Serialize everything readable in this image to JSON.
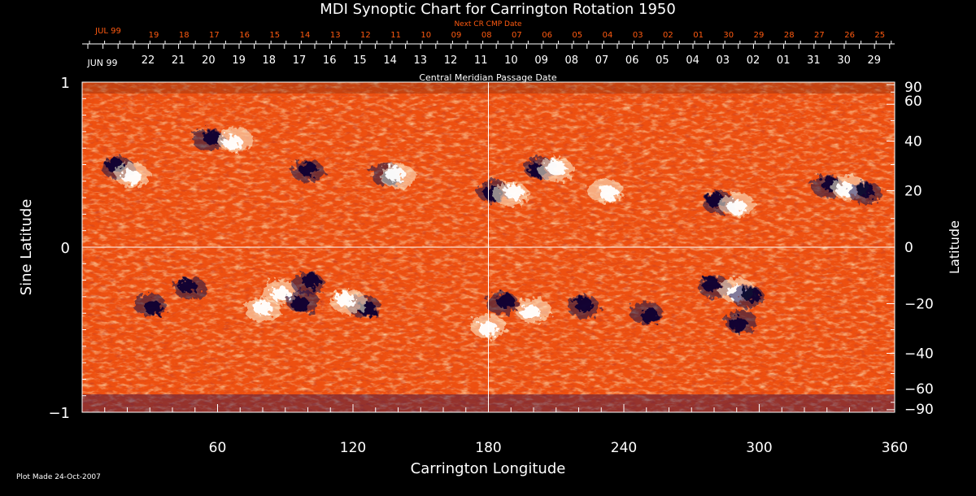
{
  "colors": {
    "background": "#000000",
    "text": "#ffffff",
    "accent_orange": "#ff5a10",
    "positive_polarity": "#fff6d8",
    "negative_polarity": "#1a0f4a",
    "background_field": "#f05a12"
  },
  "footer": {
    "plot_made": "Plot Made 24-Oct-2007"
  },
  "chart_data": {
    "type": "heatmap",
    "title": "MDI Synoptic Chart for Carrington Rotation 1950",
    "xlabel": "Carrington Longitude",
    "ylabel_left": "Sine Latitude",
    "ylabel_right": "Latitude",
    "xlim": [
      0,
      360
    ],
    "ylim": [
      -1,
      1
    ],
    "x_ticks": [
      60,
      120,
      180,
      240,
      300,
      360
    ],
    "y_ticks_left": [
      {
        "value": 1,
        "label": "1"
      },
      {
        "value": 0,
        "label": "0"
      },
      {
        "value": -1,
        "label": "−1"
      }
    ],
    "y_ticks_right": [
      90,
      60,
      40,
      20,
      0,
      -20,
      -40,
      -60,
      -90
    ],
    "grid": {
      "vertical_at_longitude": 180,
      "horizontal_at_sine_latitude": 0
    },
    "top_axis_next_cr": {
      "title": "Next CR CMP Date",
      "month_label": "JUL 99",
      "days": [
        "19",
        "18",
        "17",
        "16",
        "15",
        "14",
        "13",
        "12",
        "11",
        "10",
        "09",
        "08",
        "07",
        "06",
        "05",
        "04",
        "03",
        "02",
        "01",
        "30",
        "29",
        "28",
        "27",
        "26",
        "25"
      ]
    },
    "top_axis_cmp": {
      "title": "Central Meridian Passage Date",
      "month_label": "JUN 99",
      "days": [
        "22",
        "21",
        "20",
        "19",
        "18",
        "17",
        "16",
        "15",
        "14",
        "13",
        "12",
        "11",
        "10",
        "09",
        "08",
        "07",
        "06",
        "05",
        "04",
        "03",
        "02",
        "01",
        "31",
        "30",
        "29"
      ]
    },
    "active_regions": [
      {
        "lon": 16,
        "sinlat": 0.48,
        "polarity": "negative"
      },
      {
        "lon": 22,
        "sinlat": 0.44,
        "polarity": "positive"
      },
      {
        "lon": 56,
        "sinlat": 0.65,
        "polarity": "negative"
      },
      {
        "lon": 68,
        "sinlat": 0.65,
        "polarity": "positive"
      },
      {
        "lon": 100,
        "sinlat": 0.46,
        "polarity": "negative"
      },
      {
        "lon": 135,
        "sinlat": 0.44,
        "polarity": "negative"
      },
      {
        "lon": 140,
        "sinlat": 0.43,
        "polarity": "positive"
      },
      {
        "lon": 182,
        "sinlat": 0.34,
        "polarity": "negative"
      },
      {
        "lon": 190,
        "sinlat": 0.32,
        "polarity": "positive"
      },
      {
        "lon": 203,
        "sinlat": 0.48,
        "polarity": "negative"
      },
      {
        "lon": 210,
        "sinlat": 0.47,
        "polarity": "positive"
      },
      {
        "lon": 232,
        "sinlat": 0.34,
        "polarity": "positive"
      },
      {
        "lon": 282,
        "sinlat": 0.27,
        "polarity": "negative"
      },
      {
        "lon": 290,
        "sinlat": 0.26,
        "polarity": "positive"
      },
      {
        "lon": 330,
        "sinlat": 0.37,
        "polarity": "negative"
      },
      {
        "lon": 340,
        "sinlat": 0.36,
        "polarity": "positive"
      },
      {
        "lon": 347,
        "sinlat": 0.33,
        "polarity": "negative"
      },
      {
        "lon": 30,
        "sinlat": -0.35,
        "polarity": "negative"
      },
      {
        "lon": 48,
        "sinlat": -0.25,
        "polarity": "negative"
      },
      {
        "lon": 88,
        "sinlat": -0.27,
        "polarity": "positive"
      },
      {
        "lon": 100,
        "sinlat": -0.22,
        "polarity": "negative"
      },
      {
        "lon": 98,
        "sinlat": -0.33,
        "polarity": "negative"
      },
      {
        "lon": 80,
        "sinlat": -0.38,
        "polarity": "positive"
      },
      {
        "lon": 125,
        "sinlat": -0.36,
        "polarity": "negative"
      },
      {
        "lon": 118,
        "sinlat": -0.33,
        "polarity": "positive"
      },
      {
        "lon": 180,
        "sinlat": -0.48,
        "polarity": "positive"
      },
      {
        "lon": 186,
        "sinlat": -0.34,
        "polarity": "negative"
      },
      {
        "lon": 200,
        "sinlat": -0.38,
        "polarity": "positive"
      },
      {
        "lon": 222,
        "sinlat": -0.36,
        "polarity": "negative"
      },
      {
        "lon": 250,
        "sinlat": -0.4,
        "polarity": "negative"
      },
      {
        "lon": 280,
        "sinlat": -0.24,
        "polarity": "negative"
      },
      {
        "lon": 290,
        "sinlat": -0.26,
        "polarity": "positive"
      },
      {
        "lon": 295,
        "sinlat": -0.3,
        "polarity": "negative"
      },
      {
        "lon": 292,
        "sinlat": -0.45,
        "polarity": "negative"
      }
    ]
  }
}
